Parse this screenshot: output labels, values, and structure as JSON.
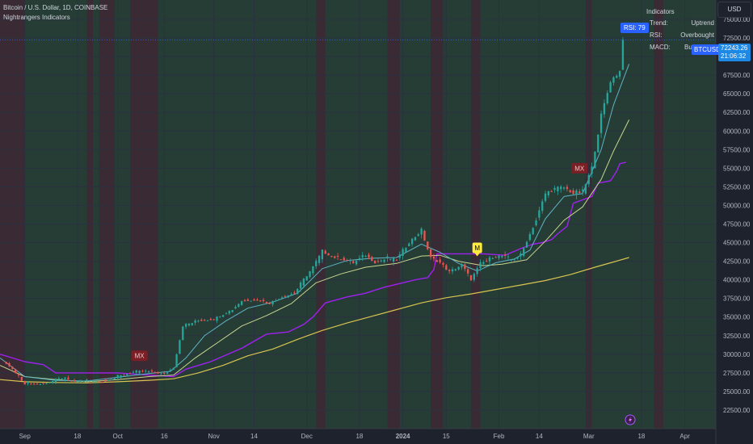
{
  "header": {
    "symbol_line": "Bitcoin / U.S. Dollar, 1D, COINBASE",
    "indicator_name": "Nightrangers Indicators"
  },
  "currency_button": "USD",
  "indicator_panel": {
    "title": "Indicators",
    "rows": [
      {
        "label": "Trend:",
        "value": "Uptrend"
      },
      {
        "label": "RSI:",
        "value": "Overbought"
      },
      {
        "label": "MACD:",
        "value": "Bu"
      }
    ]
  },
  "price_tag": {
    "symbol": "BTCUSD",
    "price": "72243.26",
    "countdown": "21:06:32"
  },
  "rsi_label": "RSI: 79",
  "colors": {
    "background": "#1e222d",
    "green_zone": "#263d36",
    "red_zone": "#3a2a33",
    "candle_up": "#26a69a",
    "candle_down": "#ef5350",
    "ema_fast": "#5fb4c7",
    "ema_mid": "#c8d68f",
    "ema_slow": "#d8c450",
    "trail_stop": "#a020f0",
    "price_tag": "#2962ff"
  },
  "chart_data": {
    "type": "candlestick",
    "y_axis": {
      "ticks": [
        22500,
        25000,
        27500,
        30000,
        32500,
        35000,
        37500,
        40000,
        42500,
        45000,
        47500,
        50000,
        52500,
        55000,
        57500,
        60000,
        62500,
        65000,
        67500,
        70000,
        72500,
        75000
      ],
      "tick_labels": [
        "22500.00",
        "25000.00",
        "27500.00",
        "30000.00",
        "32500.00",
        "35000.00",
        "37500.00",
        "40000.00",
        "42500.00",
        "45000.00",
        "47500.00",
        "50000.00",
        "52500.00",
        "55000.00",
        "57500.00",
        "60000.00",
        "62500.00",
        "65000.00",
        "67500.00",
        "70000.00",
        "72500.00",
        "75000.00"
      ],
      "range": [
        20000,
        77600
      ]
    },
    "x_axis": {
      "labels": [
        {
          "text": "Sep",
          "day": 0
        },
        {
          "text": "18",
          "day": 17
        },
        {
          "text": "Oct",
          "day": 30
        },
        {
          "text": "16",
          "day": 45
        },
        {
          "text": "Nov",
          "day": 61
        },
        {
          "text": "14",
          "day": 74
        },
        {
          "text": "Dec",
          "day": 91
        },
        {
          "text": "18",
          "day": 108
        },
        {
          "text": "2024",
          "day": 122
        },
        {
          "text": "15",
          "day": 136
        },
        {
          "text": "Feb",
          "day": 153
        },
        {
          "text": "14",
          "day": 166
        },
        {
          "text": "Mar",
          "day": 182
        },
        {
          "text": "18",
          "day": 199
        },
        {
          "text": "Apr",
          "day": 213
        }
      ],
      "range": [
        -8,
        223
      ]
    },
    "price_path": [
      [
        -8,
        29500
      ],
      [
        -4,
        28000
      ],
      [
        0,
        26000
      ],
      [
        6,
        26000
      ],
      [
        12,
        26800
      ],
      [
        16,
        26300
      ],
      [
        20,
        26500
      ],
      [
        25,
        26300
      ],
      [
        30,
        27000
      ],
      [
        35,
        27600
      ],
      [
        40,
        27700
      ],
      [
        45,
        27300
      ],
      [
        48,
        28200
      ],
      [
        51,
        33800
      ],
      [
        56,
        34500
      ],
      [
        61,
        34700
      ],
      [
        67,
        36000
      ],
      [
        70,
        37200
      ],
      [
        75,
        37300
      ],
      [
        79,
        36800
      ],
      [
        83,
        37700
      ],
      [
        87,
        38200
      ],
      [
        90,
        40000
      ],
      [
        93,
        41700
      ],
      [
        96,
        43800
      ],
      [
        100,
        43000
      ],
      [
        103,
        42700
      ],
      [
        106,
        42300
      ],
      [
        110,
        43300
      ],
      [
        113,
        42300
      ],
      [
        117,
        42900
      ],
      [
        120,
        42700
      ],
      [
        124,
        45000
      ],
      [
        128,
        46600
      ],
      [
        131,
        42900
      ],
      [
        134,
        42300
      ],
      [
        137,
        41000
      ],
      [
        141,
        42000
      ],
      [
        144,
        40000
      ],
      [
        147,
        42100
      ],
      [
        151,
        43000
      ],
      [
        154,
        43200
      ],
      [
        157,
        42700
      ],
      [
        160,
        43300
      ],
      [
        162,
        45200
      ],
      [
        165,
        48000
      ],
      [
        168,
        51600
      ],
      [
        171,
        52200
      ],
      [
        174,
        52400
      ],
      [
        177,
        51600
      ],
      [
        180,
        51800
      ],
      [
        183,
        55000
      ],
      [
        186,
        62000
      ],
      [
        189,
        66700
      ],
      [
        192,
        68000
      ],
      [
        193,
        72243
      ]
    ],
    "ema_fast": [
      [
        -8,
        29500
      ],
      [
        0,
        27000
      ],
      [
        10,
        26500
      ],
      [
        20,
        26400
      ],
      [
        30,
        26900
      ],
      [
        40,
        27400
      ],
      [
        47,
        27700
      ],
      [
        52,
        29500
      ],
      [
        58,
        32500
      ],
      [
        65,
        34500
      ],
      [
        72,
        36200
      ],
      [
        80,
        37000
      ],
      [
        88,
        38200
      ],
      [
        96,
        41500
      ],
      [
        104,
        42600
      ],
      [
        112,
        42900
      ],
      [
        120,
        43000
      ],
      [
        128,
        44800
      ],
      [
        134,
        43700
      ],
      [
        140,
        42200
      ],
      [
        146,
        41200
      ],
      [
        152,
        42300
      ],
      [
        158,
        42800
      ],
      [
        163,
        44000
      ],
      [
        168,
        48200
      ],
      [
        174,
        51200
      ],
      [
        180,
        51600
      ],
      [
        186,
        57500
      ],
      [
        190,
        63500
      ],
      [
        195,
        69000
      ]
    ],
    "ema_mid": [
      [
        -8,
        28500
      ],
      [
        0,
        27000
      ],
      [
        10,
        26600
      ],
      [
        20,
        26300
      ],
      [
        30,
        26600
      ],
      [
        40,
        27000
      ],
      [
        48,
        27200
      ],
      [
        55,
        29500
      ],
      [
        62,
        31500
      ],
      [
        70,
        33800
      ],
      [
        78,
        35200
      ],
      [
        86,
        36800
      ],
      [
        94,
        39600
      ],
      [
        102,
        40800
      ],
      [
        110,
        41700
      ],
      [
        120,
        42200
      ],
      [
        128,
        43200
      ],
      [
        134,
        43300
      ],
      [
        140,
        42500
      ],
      [
        148,
        41900
      ],
      [
        154,
        42100
      ],
      [
        162,
        42700
      ],
      [
        168,
        45200
      ],
      [
        174,
        48000
      ],
      [
        180,
        49800
      ],
      [
        186,
        53500
      ],
      [
        190,
        57300
      ],
      [
        195,
        61500
      ]
    ],
    "ema_slow": [
      [
        -8,
        26600
      ],
      [
        0,
        26300
      ],
      [
        10,
        26200
      ],
      [
        20,
        26150
      ],
      [
        30,
        26300
      ],
      [
        40,
        26500
      ],
      [
        48,
        26700
      ],
      [
        56,
        27500
      ],
      [
        64,
        28500
      ],
      [
        72,
        29800
      ],
      [
        80,
        30700
      ],
      [
        88,
        32000
      ],
      [
        96,
        33200
      ],
      [
        104,
        34200
      ],
      [
        112,
        35100
      ],
      [
        120,
        36000
      ],
      [
        128,
        36900
      ],
      [
        136,
        37600
      ],
      [
        144,
        38100
      ],
      [
        152,
        38700
      ],
      [
        160,
        39300
      ],
      [
        168,
        39900
      ],
      [
        176,
        40700
      ],
      [
        184,
        41700
      ],
      [
        190,
        42400
      ],
      [
        195,
        43000
      ]
    ],
    "trail_stop": [
      [
        -8,
        30000
      ],
      [
        0,
        29000
      ],
      [
        6,
        28600
      ],
      [
        10,
        27500
      ],
      [
        20,
        27500
      ],
      [
        30,
        27500
      ],
      [
        40,
        27200
      ],
      [
        48,
        27000
      ],
      [
        52,
        28000
      ],
      [
        60,
        29000
      ],
      [
        70,
        30800
      ],
      [
        78,
        32700
      ],
      [
        85,
        33000
      ],
      [
        90,
        34000
      ],
      [
        93,
        35000
      ],
      [
        97,
        36900
      ],
      [
        104,
        37700
      ],
      [
        110,
        38200
      ],
      [
        116,
        39000
      ],
      [
        122,
        39600
      ],
      [
        126,
        40000
      ],
      [
        130,
        40300
      ],
      [
        132,
        41400
      ],
      [
        133,
        43500
      ],
      [
        148,
        43500
      ],
      [
        155,
        43300
      ],
      [
        160,
        44200
      ],
      [
        164,
        44800
      ],
      [
        167,
        45000
      ],
      [
        170,
        45400
      ],
      [
        172,
        46200
      ],
      [
        175,
        47200
      ],
      [
        177,
        50300
      ],
      [
        183,
        51200
      ],
      [
        185,
        53000
      ],
      [
        189,
        53300
      ],
      [
        191,
        54600
      ],
      [
        192,
        55600
      ],
      [
        194,
        55800
      ]
    ],
    "markers": [
      {
        "label": "MX",
        "day": 37,
        "price": 29800,
        "color": "#7a1f25"
      },
      {
        "label": "MX",
        "day": 179,
        "price": 55000,
        "color": "#7a1f25"
      },
      {
        "label": "M",
        "day": 146,
        "price": 44300,
        "color": "#ffeb3b"
      }
    ],
    "red_zones": [
      [
        -8,
        0
      ],
      [
        20,
        22
      ],
      [
        24,
        29
      ],
      [
        34,
        43
      ],
      [
        94,
        97
      ],
      [
        117,
        121
      ],
      [
        131,
        135
      ],
      [
        144,
        147
      ],
      [
        181,
        183
      ],
      [
        203,
        206
      ]
    ],
    "current_price_line": 72243
  }
}
